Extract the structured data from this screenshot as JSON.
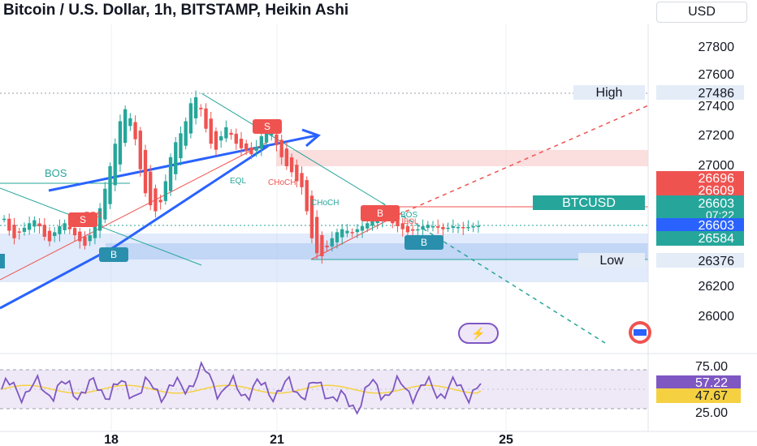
{
  "header": {
    "title": "Bitcoin / U.S. Dollar, 1h, BITSTAMP, Heikin Ashi",
    "currency": "USD"
  },
  "price_axis": {
    "ticks": [
      "27800",
      "27600",
      "27400",
      "27200",
      "27000",
      "26200",
      "26000"
    ]
  },
  "labels": {
    "high_label": "High",
    "high_value": "27486",
    "low_label": "Low",
    "low_value": "26376",
    "symbol_label": "BTCUSD",
    "price_1": "26696",
    "price_2": "26609",
    "price_current": "26603",
    "countdown": "07:22",
    "price_current_2": "26603",
    "price_3": "26584"
  },
  "annotations": {
    "bos_1": "BOS",
    "bos_2": "BOS",
    "bos_3": "BOS",
    "eql_1": "EQL",
    "eql_2": "EQL",
    "choch_1": "CHoCH",
    "choch_2": "CHoCH",
    "sell_1": "S",
    "sell_2": "S",
    "buy_1": "B",
    "buy_2": "B",
    "buy_3": "B"
  },
  "rsi": {
    "ticks": [
      "75.00",
      "25.00"
    ],
    "rsi_value": "57.22",
    "ma_value": "47.67"
  },
  "time_axis": {
    "ticks": [
      "18",
      "21",
      "25"
    ]
  },
  "colors": {
    "up": "#26a69a",
    "down": "#ef5350",
    "blue_line": "#2962ff",
    "rsi_line": "#7e57c2",
    "rsi_ma": "#f5d142"
  },
  "chart_data": {
    "type": "candlestick",
    "title": "Bitcoin / U.S. Dollar, 1h, BITSTAMP, Heikin Ashi",
    "y_range": [
      25900,
      27900
    ],
    "y_ticks": [
      26000,
      26200,
      27000,
      27200,
      27400,
      27600,
      27800
    ],
    "x_ticks": [
      "18",
      "21",
      "25"
    ],
    "high": 27486,
    "low": 26376,
    "current_price": 26603,
    "price_levels": [
      26696,
      26609,
      26603,
      26584
    ],
    "rsi": {
      "value": 57.22,
      "ma": 47.67,
      "levels": [
        75,
        25
      ]
    },
    "close_series": [
      26650,
      26570,
      26520,
      26560,
      26590,
      26620,
      26640,
      26600,
      26530,
      26500,
      26560,
      26600,
      26620,
      26580,
      26540,
      26500,
      26470,
      26540,
      26620,
      26720,
      26850,
      27000,
      27150,
      27300,
      27380,
      27320,
      27180,
      26980,
      26820,
      26740,
      26700,
      26760,
      26900,
      27060,
      27160,
      27220,
      27300,
      27420,
      27460,
      27380,
      27250,
      27150,
      27110,
      27200,
      27260,
      27210,
      27150,
      27120,
      27100,
      27080,
      27130,
      27200,
      27250,
      27220,
      27140,
      27060,
      27000,
      26960,
      26900,
      26860,
      26700,
      26520,
      26420,
      26400,
      26460,
      26520,
      26560,
      26580,
      26570,
      26560,
      26580,
      26600,
      26620,
      26640,
      26660,
      26680,
      26660,
      26620,
      26600,
      26580,
      26560,
      26570,
      26580,
      26600,
      26610,
      26600,
      26590,
      26580,
      26590,
      26600,
      26595,
      26590,
      26595,
      26600,
      26603
    ]
  }
}
